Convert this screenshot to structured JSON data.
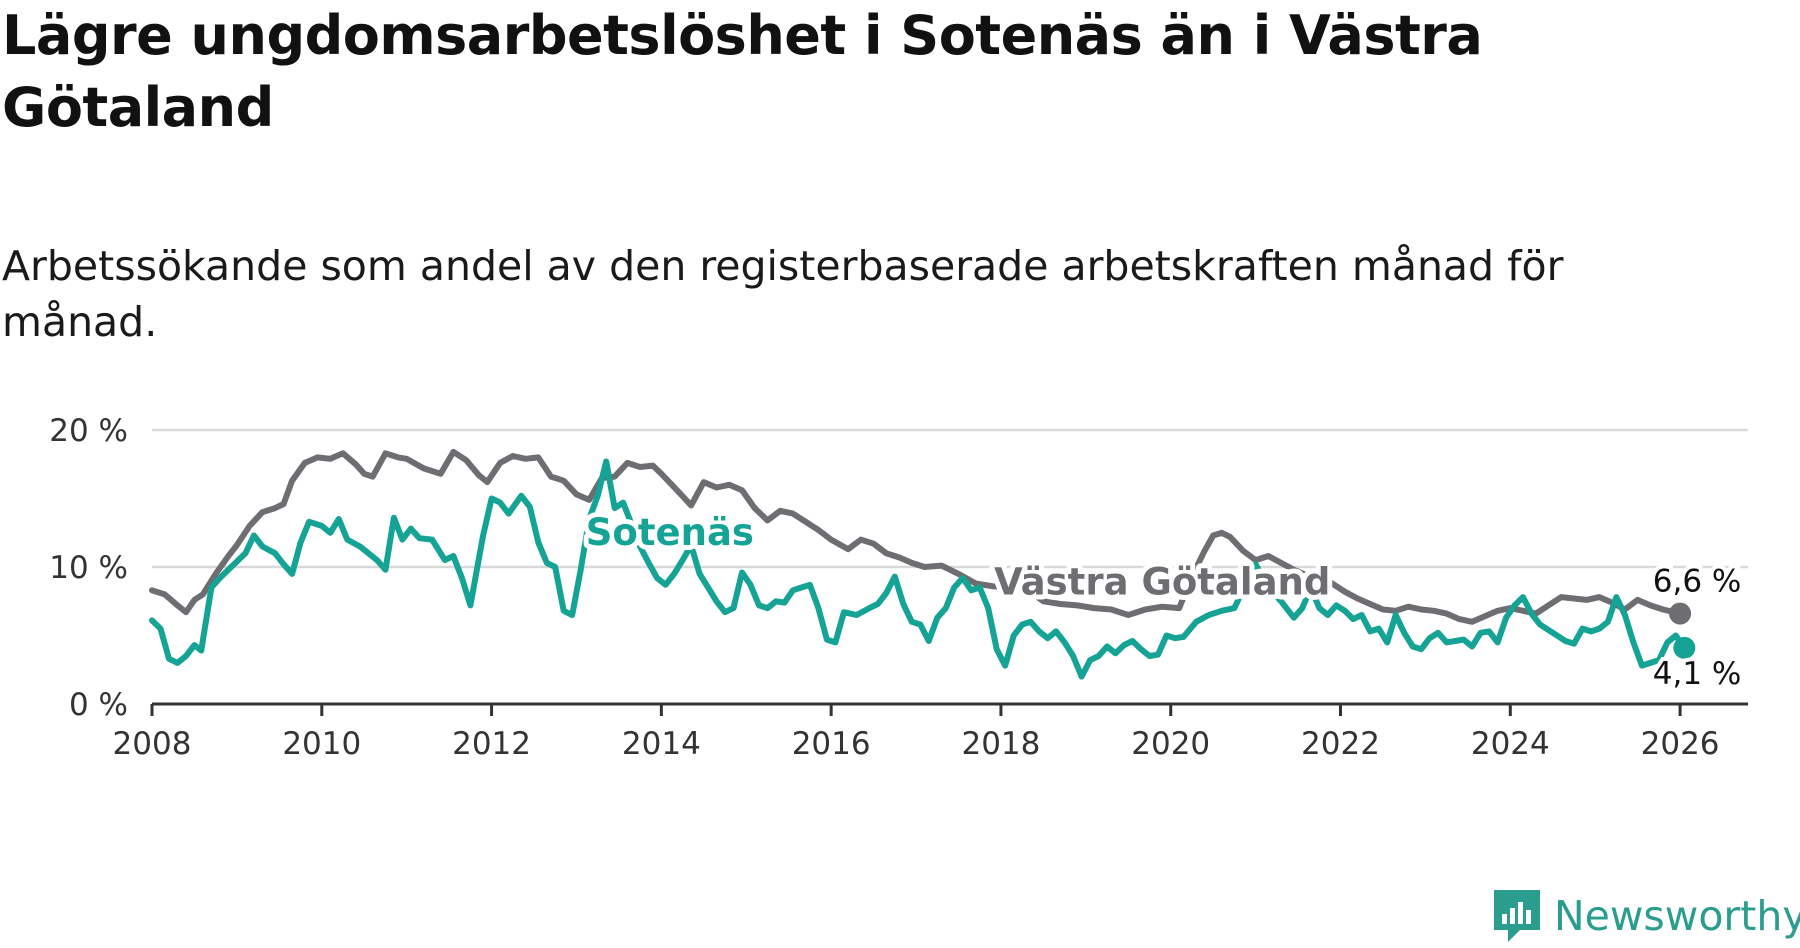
{
  "title": "Lägre ungdomsarbetslöshet i Sotenäs än i Västra Götaland",
  "subtitle": "Arbetssökande som andel av den registerbaserade arbetskraften månad för månad.",
  "brand": {
    "name": "Newsworthy",
    "icon": "newsworthy-logo-icon"
  },
  "colors": {
    "sotenas": "#14a394",
    "vastra": "#6e6d72",
    "grid": "#d9d9d9",
    "axis": "#333333"
  },
  "chart_data": {
    "type": "line",
    "title": "Lägre ungdomsarbetslöshet i Sotenäs än i Västra Götaland",
    "xlabel": "",
    "ylabel": "",
    "xlim": [
      2008,
      2026.8
    ],
    "ylim": [
      0,
      20
    ],
    "y_ticks": [
      0,
      10,
      20
    ],
    "y_tick_labels": [
      "0 %",
      "10 %",
      "20 %"
    ],
    "x_ticks": [
      2008,
      2010,
      2012,
      2014,
      2016,
      2018,
      2020,
      2022,
      2024,
      2026
    ],
    "x_tick_labels": [
      "2008",
      "2010",
      "2012",
      "2014",
      "2016",
      "2018",
      "2020",
      "2022",
      "2024",
      "2026"
    ],
    "grid": true,
    "series": [
      {
        "name": "Västra Götaland",
        "label": "Västra Götaland",
        "end_label": "6,6 %",
        "end_value": 6.6,
        "points": [
          [
            2008.0,
            8.3
          ],
          [
            2008.15,
            8.0
          ],
          [
            2008.3,
            7.2
          ],
          [
            2008.4,
            6.7
          ],
          [
            2008.5,
            7.6
          ],
          [
            2008.6,
            8.0
          ],
          [
            2008.75,
            9.5
          ],
          [
            2008.9,
            10.8
          ],
          [
            2009.0,
            11.6
          ],
          [
            2009.15,
            13.0
          ],
          [
            2009.3,
            14.0
          ],
          [
            2009.45,
            14.3
          ],
          [
            2009.55,
            14.6
          ],
          [
            2009.65,
            16.3
          ],
          [
            2009.8,
            17.6
          ],
          [
            2009.95,
            18.0
          ],
          [
            2010.1,
            17.9
          ],
          [
            2010.25,
            18.3
          ],
          [
            2010.4,
            17.5
          ],
          [
            2010.5,
            16.8
          ],
          [
            2010.6,
            16.6
          ],
          [
            2010.75,
            18.3
          ],
          [
            2010.9,
            18.0
          ],
          [
            2011.0,
            17.9
          ],
          [
            2011.2,
            17.2
          ],
          [
            2011.4,
            16.8
          ],
          [
            2011.55,
            18.4
          ],
          [
            2011.7,
            17.8
          ],
          [
            2011.85,
            16.7
          ],
          [
            2011.95,
            16.2
          ],
          [
            2012.1,
            17.6
          ],
          [
            2012.25,
            18.1
          ],
          [
            2012.4,
            17.9
          ],
          [
            2012.55,
            18.0
          ],
          [
            2012.7,
            16.6
          ],
          [
            2012.85,
            16.3
          ],
          [
            2013.0,
            15.3
          ],
          [
            2013.15,
            14.9
          ],
          [
            2013.3,
            16.5
          ],
          [
            2013.45,
            16.6
          ],
          [
            2013.6,
            17.6
          ],
          [
            2013.75,
            17.3
          ],
          [
            2013.9,
            17.4
          ],
          [
            2014.0,
            16.8
          ],
          [
            2014.2,
            15.5
          ],
          [
            2014.35,
            14.5
          ],
          [
            2014.5,
            16.2
          ],
          [
            2014.65,
            15.8
          ],
          [
            2014.8,
            16.0
          ],
          [
            2014.95,
            15.6
          ],
          [
            2015.1,
            14.3
          ],
          [
            2015.25,
            13.4
          ],
          [
            2015.4,
            14.1
          ],
          [
            2015.55,
            13.9
          ],
          [
            2015.7,
            13.3
          ],
          [
            2015.85,
            12.7
          ],
          [
            2016.0,
            12.0
          ],
          [
            2016.2,
            11.3
          ],
          [
            2016.35,
            12.0
          ],
          [
            2016.5,
            11.7
          ],
          [
            2016.65,
            11.0
          ],
          [
            2016.8,
            10.7
          ],
          [
            2016.95,
            10.3
          ],
          [
            2017.1,
            10.0
          ],
          [
            2017.3,
            10.1
          ],
          [
            2017.5,
            9.5
          ],
          [
            2017.7,
            8.8
          ],
          [
            2017.9,
            8.6
          ],
          [
            2018.1,
            8.5
          ],
          [
            2018.3,
            8.4
          ],
          [
            2018.5,
            7.5
          ],
          [
            2018.7,
            7.3
          ],
          [
            2018.9,
            7.2
          ],
          [
            2019.1,
            7.0
          ],
          [
            2019.3,
            6.9
          ],
          [
            2019.5,
            6.5
          ],
          [
            2019.7,
            6.9
          ],
          [
            2019.9,
            7.1
          ],
          [
            2020.1,
            7.0
          ],
          [
            2020.25,
            9.3
          ],
          [
            2020.4,
            11.2
          ],
          [
            2020.5,
            12.3
          ],
          [
            2020.6,
            12.5
          ],
          [
            2020.7,
            12.2
          ],
          [
            2020.85,
            11.2
          ],
          [
            2021.0,
            10.5
          ],
          [
            2021.15,
            10.8
          ],
          [
            2021.3,
            10.3
          ],
          [
            2021.45,
            9.8
          ],
          [
            2021.6,
            9.4
          ],
          [
            2021.75,
            9.5
          ],
          [
            2021.9,
            8.8
          ],
          [
            2022.05,
            8.2
          ],
          [
            2022.2,
            7.7
          ],
          [
            2022.35,
            7.3
          ],
          [
            2022.5,
            6.9
          ],
          [
            2022.65,
            6.8
          ],
          [
            2022.8,
            7.1
          ],
          [
            2022.95,
            6.9
          ],
          [
            2023.1,
            6.8
          ],
          [
            2023.25,
            6.6
          ],
          [
            2023.4,
            6.2
          ],
          [
            2023.55,
            6.0
          ],
          [
            2023.7,
            6.4
          ],
          [
            2023.85,
            6.8
          ],
          [
            2024.0,
            7.0
          ],
          [
            2024.15,
            6.8
          ],
          [
            2024.3,
            6.6
          ],
          [
            2024.45,
            7.2
          ],
          [
            2024.6,
            7.8
          ],
          [
            2024.75,
            7.7
          ],
          [
            2024.9,
            7.6
          ],
          [
            2025.05,
            7.8
          ],
          [
            2025.2,
            7.4
          ],
          [
            2025.35,
            6.9
          ],
          [
            2025.5,
            7.6
          ],
          [
            2025.65,
            7.2
          ],
          [
            2025.8,
            6.9
          ],
          [
            2026.0,
            6.6
          ]
        ]
      },
      {
        "name": "Sotenäs",
        "label": "Sotenäs",
        "end_label": "4,1 %",
        "end_value": 4.1,
        "points": [
          [
            2008.0,
            6.1
          ],
          [
            2008.1,
            5.5
          ],
          [
            2008.2,
            3.3
          ],
          [
            2008.3,
            3.0
          ],
          [
            2008.4,
            3.5
          ],
          [
            2008.5,
            4.3
          ],
          [
            2008.58,
            3.9
          ],
          [
            2008.7,
            8.5
          ],
          [
            2008.8,
            9.2
          ],
          [
            2008.9,
            9.8
          ],
          [
            2009.0,
            10.4
          ],
          [
            2009.1,
            11.0
          ],
          [
            2009.2,
            12.3
          ],
          [
            2009.3,
            11.5
          ],
          [
            2009.45,
            11.0
          ],
          [
            2009.55,
            10.2
          ],
          [
            2009.65,
            9.5
          ],
          [
            2009.75,
            11.8
          ],
          [
            2009.85,
            13.3
          ],
          [
            2010.0,
            13.0
          ],
          [
            2010.1,
            12.5
          ],
          [
            2010.2,
            13.5
          ],
          [
            2010.3,
            12.0
          ],
          [
            2010.45,
            11.5
          ],
          [
            2010.55,
            11.0
          ],
          [
            2010.65,
            10.5
          ],
          [
            2010.75,
            9.8
          ],
          [
            2010.85,
            13.6
          ],
          [
            2010.95,
            12.0
          ],
          [
            2011.05,
            12.8
          ],
          [
            2011.15,
            12.1
          ],
          [
            2011.3,
            12.0
          ],
          [
            2011.45,
            10.5
          ],
          [
            2011.55,
            10.8
          ],
          [
            2011.65,
            9.2
          ],
          [
            2011.75,
            7.2
          ],
          [
            2011.9,
            12.3
          ],
          [
            2012.0,
            15.0
          ],
          [
            2012.1,
            14.7
          ],
          [
            2012.2,
            13.9
          ],
          [
            2012.35,
            15.2
          ],
          [
            2012.45,
            14.4
          ],
          [
            2012.55,
            11.8
          ],
          [
            2012.65,
            10.3
          ],
          [
            2012.75,
            10.0
          ],
          [
            2012.85,
            6.8
          ],
          [
            2012.95,
            6.5
          ],
          [
            2013.05,
            9.8
          ],
          [
            2013.15,
            13.5
          ],
          [
            2013.25,
            15.2
          ],
          [
            2013.35,
            17.7
          ],
          [
            2013.45,
            14.3
          ],
          [
            2013.55,
            14.7
          ],
          [
            2013.65,
            13.1
          ],
          [
            2013.75,
            11.5
          ],
          [
            2013.85,
            10.3
          ],
          [
            2013.95,
            9.2
          ],
          [
            2014.05,
            8.7
          ],
          [
            2014.15,
            9.5
          ],
          [
            2014.25,
            10.5
          ],
          [
            2014.35,
            11.6
          ],
          [
            2014.45,
            9.5
          ],
          [
            2014.55,
            8.5
          ],
          [
            2014.65,
            7.5
          ],
          [
            2014.75,
            6.7
          ],
          [
            2014.85,
            7.0
          ],
          [
            2014.95,
            9.6
          ],
          [
            2015.05,
            8.7
          ],
          [
            2015.15,
            7.2
          ],
          [
            2015.25,
            7.0
          ],
          [
            2015.35,
            7.5
          ],
          [
            2015.45,
            7.4
          ],
          [
            2015.55,
            8.3
          ],
          [
            2015.65,
            8.5
          ],
          [
            2015.75,
            8.7
          ],
          [
            2015.85,
            7.0
          ],
          [
            2015.95,
            4.7
          ],
          [
            2016.05,
            4.5
          ],
          [
            2016.15,
            6.7
          ],
          [
            2016.3,
            6.5
          ],
          [
            2016.45,
            7.0
          ],
          [
            2016.55,
            7.3
          ],
          [
            2016.65,
            8.1
          ],
          [
            2016.75,
            9.3
          ],
          [
            2016.85,
            7.3
          ],
          [
            2016.95,
            6.0
          ],
          [
            2017.05,
            5.8
          ],
          [
            2017.15,
            4.6
          ],
          [
            2017.25,
            6.3
          ],
          [
            2017.35,
            7.0
          ],
          [
            2017.45,
            8.5
          ],
          [
            2017.55,
            9.2
          ],
          [
            2017.65,
            8.3
          ],
          [
            2017.75,
            8.5
          ],
          [
            2017.85,
            7.0
          ],
          [
            2017.95,
            4.0
          ],
          [
            2018.05,
            2.8
          ],
          [
            2018.15,
            5.0
          ],
          [
            2018.25,
            5.8
          ],
          [
            2018.35,
            6.0
          ],
          [
            2018.45,
            5.3
          ],
          [
            2018.55,
            4.8
          ],
          [
            2018.65,
            5.3
          ],
          [
            2018.75,
            4.5
          ],
          [
            2018.85,
            3.5
          ],
          [
            2018.95,
            2.0
          ],
          [
            2019.05,
            3.2
          ],
          [
            2019.15,
            3.5
          ],
          [
            2019.25,
            4.2
          ],
          [
            2019.35,
            3.7
          ],
          [
            2019.45,
            4.3
          ],
          [
            2019.55,
            4.6
          ],
          [
            2019.65,
            4.0
          ],
          [
            2019.75,
            3.5
          ],
          [
            2019.85,
            3.6
          ],
          [
            2019.95,
            5.0
          ],
          [
            2020.05,
            4.8
          ],
          [
            2020.15,
            4.9
          ],
          [
            2020.3,
            6.0
          ],
          [
            2020.45,
            6.5
          ],
          [
            2020.6,
            6.8
          ],
          [
            2020.75,
            7.0
          ],
          [
            2020.9,
            9.0
          ],
          [
            2021.0,
            10.2
          ],
          [
            2021.15,
            8.5
          ],
          [
            2021.3,
            7.5
          ],
          [
            2021.45,
            6.3
          ],
          [
            2021.55,
            7.0
          ],
          [
            2021.65,
            8.5
          ],
          [
            2021.75,
            7.0
          ],
          [
            2021.85,
            6.5
          ],
          [
            2021.95,
            7.2
          ],
          [
            2022.05,
            6.8
          ],
          [
            2022.15,
            6.2
          ],
          [
            2022.25,
            6.5
          ],
          [
            2022.35,
            5.3
          ],
          [
            2022.45,
            5.5
          ],
          [
            2022.55,
            4.5
          ],
          [
            2022.65,
            6.5
          ],
          [
            2022.75,
            5.2
          ],
          [
            2022.85,
            4.2
          ],
          [
            2022.95,
            4.0
          ],
          [
            2023.05,
            4.8
          ],
          [
            2023.15,
            5.2
          ],
          [
            2023.25,
            4.5
          ],
          [
            2023.35,
            4.6
          ],
          [
            2023.45,
            4.7
          ],
          [
            2023.55,
            4.2
          ],
          [
            2023.65,
            5.2
          ],
          [
            2023.75,
            5.3
          ],
          [
            2023.85,
            4.5
          ],
          [
            2023.95,
            6.3
          ],
          [
            2024.05,
            7.2
          ],
          [
            2024.15,
            7.8
          ],
          [
            2024.25,
            6.6
          ],
          [
            2024.35,
            5.8
          ],
          [
            2024.45,
            5.4
          ],
          [
            2024.55,
            5.0
          ],
          [
            2024.65,
            4.6
          ],
          [
            2024.75,
            4.4
          ],
          [
            2024.85,
            5.5
          ],
          [
            2024.95,
            5.3
          ],
          [
            2025.05,
            5.5
          ],
          [
            2025.15,
            6.0
          ],
          [
            2025.25,
            7.8
          ],
          [
            2025.35,
            6.5
          ],
          [
            2025.45,
            4.5
          ],
          [
            2025.55,
            2.8
          ],
          [
            2025.65,
            3.0
          ],
          [
            2025.75,
            3.2
          ],
          [
            2025.85,
            4.5
          ],
          [
            2025.95,
            5.0
          ],
          [
            2026.05,
            4.1
          ]
        ]
      }
    ]
  }
}
